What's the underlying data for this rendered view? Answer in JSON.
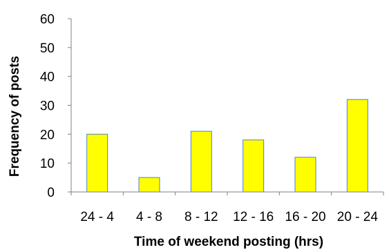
{
  "chart_data": {
    "type": "bar",
    "xlabel": "Time of weekend posting (hrs)",
    "ylabel": "Frequency of posts",
    "categories": [
      "24 - 4",
      "4 - 8",
      "8 - 12",
      "12 - 16",
      "16 - 20",
      "20 - 24"
    ],
    "values": [
      20,
      5,
      21,
      18,
      12,
      32
    ],
    "ylim": [
      0,
      60
    ],
    "yticks": [
      0,
      10,
      20,
      30,
      40,
      50,
      60
    ],
    "grid": false,
    "legend": "none",
    "colors": {
      "bar_fill": "#ffff00",
      "bar_stroke": "#4f81bd",
      "axis": "#808080"
    }
  }
}
